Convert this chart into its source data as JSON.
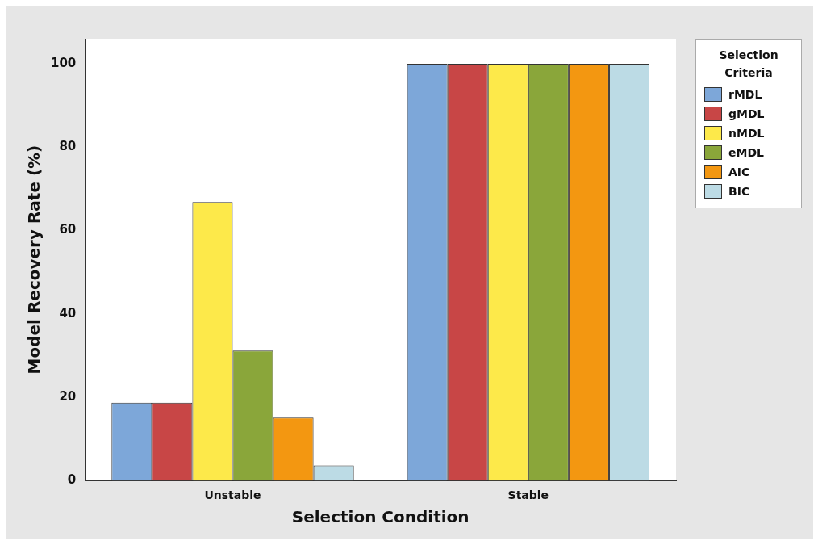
{
  "chart_data": {
    "type": "bar",
    "xlabel": "Selection Condition",
    "ylabel": "Model Recovery Rate (%)",
    "legend_title": "Selection Criteria",
    "legend": "top right",
    "categories": [
      "Unstable",
      "Stable"
    ],
    "series": [
      {
        "name": "rMDL",
        "color": "#7da7d9",
        "values": [
          18.7,
          100
        ]
      },
      {
        "name": "gMDL",
        "color": "#c84646",
        "values": [
          18.7,
          100
        ]
      },
      {
        "name": "nMDL",
        "color": "#fde94a",
        "values": [
          66.8,
          100
        ]
      },
      {
        "name": "eMDL",
        "color": "#8aa63a",
        "values": [
          31.2,
          100
        ]
      },
      {
        "name": "AIC",
        "color": "#f39711",
        "values": [
          15.1,
          100
        ]
      },
      {
        "name": "BIC",
        "color": "#bcdbe5",
        "values": [
          3.6,
          100
        ]
      }
    ],
    "ylim": [
      0,
      106
    ],
    "yticks": [
      0,
      20,
      40,
      60,
      80,
      100
    ],
    "grid": false
  }
}
